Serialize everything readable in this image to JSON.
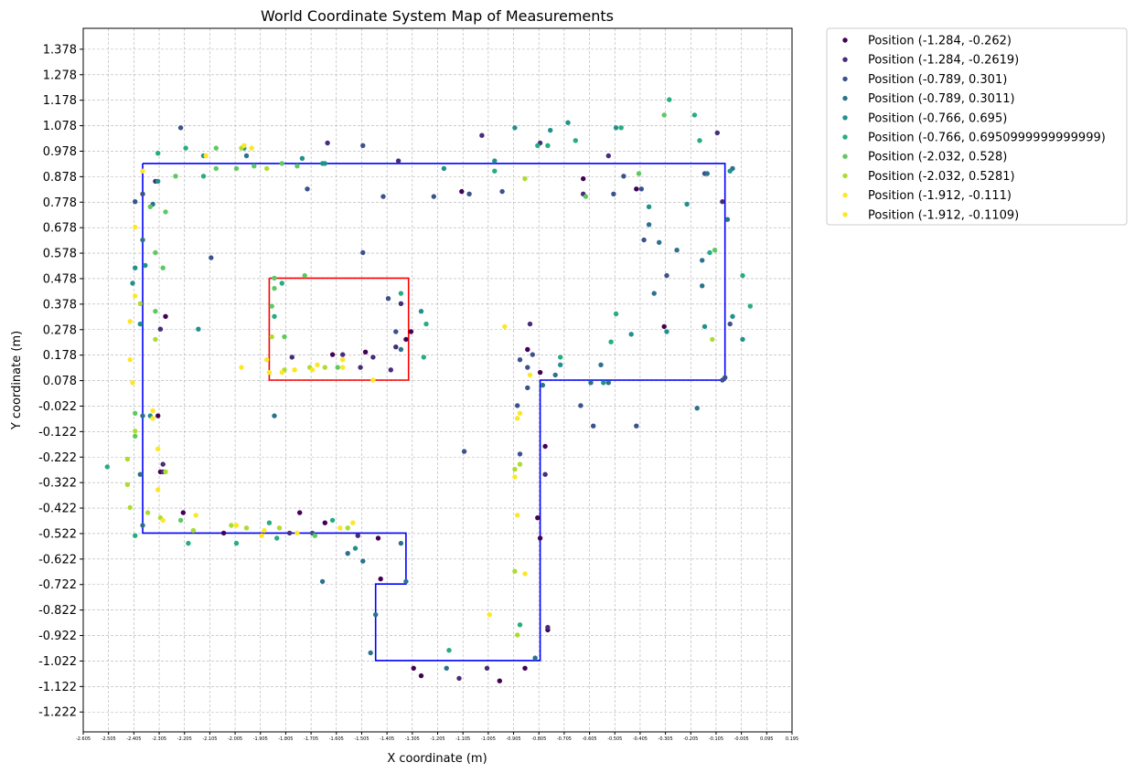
{
  "chart_data": {
    "type": "scatter",
    "title": "World Coordinate System Map of Measurements",
    "xlabel": "X coordinate (m)",
    "ylabel": "Y coordinate (m)",
    "xlim": [
      -2.605,
      0.195
    ],
    "ylim": [
      -1.3,
      1.46
    ],
    "grid": true,
    "legend_position": "outside-top-right",
    "x_ticks": [
      "-2.605",
      "-2.505",
      "-2.405",
      "-2.305",
      "-2.205",
      "-2.105",
      "-2.005",
      "-1.905",
      "-1.805",
      "-1.705",
      "-1.605",
      "-1.505",
      "-1.405",
      "-1.305",
      "-1.205",
      "-1.105",
      "-1.005",
      "-0.905",
      "-0.805",
      "-0.705",
      "-0.605",
      "-0.505",
      "-0.405",
      "-0.305",
      "-0.205",
      "-0.105",
      "-0.005",
      "0.095",
      "0.195"
    ],
    "y_ticks": [
      "1.378",
      "1.278",
      "1.178",
      "1.078",
      "0.978",
      "0.878",
      "0.778",
      "0.678",
      "0.578",
      "0.478",
      "0.378",
      "0.278",
      "0.178",
      "0.078",
      "-0.022",
      "-0.122",
      "-0.222",
      "-0.322",
      "-0.422",
      "-0.522",
      "-0.622",
      "-0.722",
      "-0.822",
      "-0.922",
      "-1.022",
      "-1.122",
      "-1.222"
    ],
    "blue_outline": [
      [
        -2.37,
        0.93
      ],
      [
        -0.07,
        0.93
      ],
      [
        -0.07,
        0.08
      ],
      [
        -0.8,
        0.08
      ],
      [
        -0.8,
        -1.02
      ],
      [
        -1.45,
        -1.02
      ],
      [
        -1.45,
        -0.72
      ],
      [
        -1.33,
        -0.72
      ],
      [
        -1.33,
        -0.52
      ],
      [
        -2.37,
        -0.52
      ],
      [
        -2.37,
        0.93
      ]
    ],
    "red_box": [
      [
        -1.87,
        0.48
      ],
      [
        -1.32,
        0.48
      ],
      [
        -1.32,
        0.08
      ],
      [
        -1.87,
        0.08
      ],
      [
        -1.87,
        0.48
      ]
    ],
    "series": [
      {
        "name": "Position (-1.284, -0.262)",
        "color": "#440154",
        "points": [
          [
            -2.31,
            -0.06
          ],
          [
            -2.3,
            -0.28
          ],
          [
            -2.28,
            0.33
          ],
          [
            -2.21,
            -0.44
          ],
          [
            -2.05,
            -0.52
          ],
          [
            -1.65,
            -0.48
          ],
          [
            -1.62,
            0.18
          ],
          [
            -1.49,
            0.19
          ],
          [
            -1.44,
            -0.54
          ],
          [
            -1.33,
            0.24
          ],
          [
            -1.31,
            0.27
          ],
          [
            -1.27,
            -1.08
          ],
          [
            -1.11,
            0.82
          ],
          [
            -0.85,
            0.2
          ],
          [
            -0.81,
            -0.46
          ],
          [
            -0.8,
            -0.54
          ],
          [
            -0.78,
            -0.18
          ],
          [
            -0.77,
            -0.9
          ],
          [
            -0.63,
            0.87
          ],
          [
            -0.42,
            0.83
          ],
          [
            -0.31,
            0.29
          ],
          [
            -1.3,
            -1.05
          ],
          [
            -1.43,
            -0.7
          ],
          [
            -0.96,
            -1.1
          ],
          [
            -1.75,
            -0.44
          ],
          [
            -0.86,
            -1.05
          ],
          [
            -0.8,
            0.11
          ]
        ]
      },
      {
        "name": "Position (-1.284, -0.2619)",
        "color": "#472c7a",
        "points": [
          [
            -2.3,
            0.28
          ],
          [
            -2.29,
            -0.25
          ],
          [
            -2.32,
            0.86
          ],
          [
            -1.58,
            0.18
          ],
          [
            -1.51,
            0.13
          ],
          [
            -1.46,
            0.17
          ],
          [
            -1.37,
            0.21
          ],
          [
            -1.39,
            0.12
          ],
          [
            -1.35,
            0.38
          ],
          [
            -1.78,
            0.17
          ],
          [
            -1.79,
            -0.52
          ],
          [
            -1.52,
            -0.53
          ],
          [
            -1.12,
            -1.09
          ],
          [
            -1.01,
            -1.05
          ],
          [
            -0.78,
            -0.29
          ],
          [
            -0.77,
            -0.89
          ],
          [
            -0.8,
            1.01
          ],
          [
            -0.53,
            0.96
          ],
          [
            -0.08,
            0.78
          ],
          [
            -0.1,
            1.05
          ],
          [
            -2.29,
            -0.28
          ],
          [
            -0.84,
            0.3
          ],
          [
            -1.64,
            1.01
          ],
          [
            -1.36,
            0.94
          ],
          [
            -1.03,
            1.04
          ],
          [
            -0.63,
            0.81
          ]
        ]
      },
      {
        "name": "Position (-0.789, 0.301)",
        "color": "#3b528b",
        "points": [
          [
            -2.4,
            0.78
          ],
          [
            -2.37,
            0.81
          ],
          [
            -2.22,
            1.07
          ],
          [
            -2.1,
            0.56
          ],
          [
            -1.72,
            0.83
          ],
          [
            -1.42,
            0.8
          ],
          [
            -1.4,
            0.4
          ],
          [
            -1.37,
            0.27
          ],
          [
            -1.22,
            0.8
          ],
          [
            -1.08,
            0.81
          ],
          [
            -0.95,
            0.82
          ],
          [
            -0.88,
            0.16
          ],
          [
            -0.88,
            -0.21
          ],
          [
            -0.89,
            -0.02
          ],
          [
            -0.85,
            0.05
          ],
          [
            -0.85,
            0.13
          ],
          [
            -0.64,
            -0.02
          ],
          [
            -0.51,
            0.81
          ],
          [
            -0.47,
            0.88
          ],
          [
            -0.4,
            0.83
          ],
          [
            -0.39,
            0.63
          ],
          [
            -0.3,
            0.49
          ],
          [
            -0.15,
            0.89
          ],
          [
            -0.08,
            0.08
          ],
          [
            -0.07,
            0.09
          ],
          [
            -1.1,
            -0.2
          ],
          [
            -1.5,
            0.58
          ],
          [
            -1.5,
            1.0
          ],
          [
            -1.7,
            -0.52
          ],
          [
            -0.59,
            -0.1
          ],
          [
            -0.42,
            -0.1
          ],
          [
            -0.83,
            0.18
          ],
          [
            -0.05,
            0.3
          ]
        ]
      },
      {
        "name": "Position (-0.789, 0.3011)",
        "color": "#2c728e",
        "points": [
          [
            -2.37,
            0.63
          ],
          [
            -2.33,
            0.77
          ],
          [
            -2.37,
            -0.06
          ],
          [
            -2.38,
            -0.29
          ],
          [
            -2.37,
            -0.49
          ],
          [
            -1.96,
            0.96
          ],
          [
            -1.85,
            -0.06
          ],
          [
            -1.66,
            -0.71
          ],
          [
            -1.5,
            -0.63
          ],
          [
            -1.47,
            -0.99
          ],
          [
            -1.35,
            -0.56
          ],
          [
            -1.33,
            -0.71
          ],
          [
            -1.17,
            -1.05
          ],
          [
            -0.82,
            -1.01
          ],
          [
            -0.74,
            0.1
          ],
          [
            -0.79,
            0.06
          ],
          [
            -0.6,
            0.07
          ],
          [
            -0.53,
            0.07
          ],
          [
            -0.35,
            0.42
          ],
          [
            -0.37,
            0.69
          ],
          [
            -0.33,
            0.62
          ],
          [
            -0.14,
            0.89
          ],
          [
            -0.16,
            0.55
          ],
          [
            -0.26,
            0.59
          ],
          [
            -0.16,
            0.45
          ],
          [
            -0.18,
            -0.03
          ],
          [
            -0.06,
            0.71
          ],
          [
            -0.04,
            0.91
          ],
          [
            -1.45,
            -0.84
          ],
          [
            -1.56,
            -0.6
          ],
          [
            -1.35,
            0.2
          ],
          [
            -0.56,
            0.14
          ]
        ]
      },
      {
        "name": "Position (-0.766, 0.695)",
        "color": "#21918c",
        "points": [
          [
            -2.4,
            0.52
          ],
          [
            -2.36,
            0.53
          ],
          [
            -2.38,
            0.3
          ],
          [
            -2.41,
            0.46
          ],
          [
            -2.34,
            -0.06
          ],
          [
            -2.31,
            0.86
          ],
          [
            -2.13,
            0.96
          ],
          [
            -1.97,
            0.99
          ],
          [
            -1.74,
            0.95
          ],
          [
            -1.65,
            0.93
          ],
          [
            -1.53,
            -0.58
          ],
          [
            -1.18,
            0.91
          ],
          [
            -0.98,
            0.94
          ],
          [
            -0.9,
            1.07
          ],
          [
            -0.76,
            1.06
          ],
          [
            -0.69,
            1.09
          ],
          [
            -0.5,
            1.07
          ],
          [
            -0.55,
            0.07
          ],
          [
            -0.37,
            0.76
          ],
          [
            -0.3,
            0.27
          ],
          [
            -0.15,
            0.29
          ],
          [
            -0.22,
            0.77
          ],
          [
            -0.05,
            0.9
          ],
          [
            0.0,
            0.24
          ],
          [
            -2.15,
            0.28
          ],
          [
            -0.72,
            0.14
          ],
          [
            -0.44,
            0.26
          ],
          [
            -0.04,
            0.33
          ],
          [
            -1.27,
            0.35
          ],
          [
            -1.66,
            0.93
          ]
        ]
      },
      {
        "name": "Position (-0.766, 0.6950999999999999)",
        "color": "#27ad81",
        "points": [
          [
            -2.51,
            -0.26
          ],
          [
            -2.4,
            -0.53
          ],
          [
            -2.31,
            0.97
          ],
          [
            -2.2,
            0.99
          ],
          [
            -2.19,
            -0.56
          ],
          [
            -2.0,
            -0.56
          ],
          [
            -1.87,
            -0.48
          ],
          [
            -1.84,
            -0.54
          ],
          [
            -1.85,
            0.33
          ],
          [
            -1.82,
            0.46
          ],
          [
            -1.35,
            0.42
          ],
          [
            -1.26,
            0.17
          ],
          [
            -1.25,
            0.3
          ],
          [
            -1.16,
            -0.98
          ],
          [
            -0.98,
            0.9
          ],
          [
            -0.88,
            -0.88
          ],
          [
            -0.81,
            1.0
          ],
          [
            -0.77,
            1.0
          ],
          [
            -0.66,
            1.02
          ],
          [
            -0.72,
            0.17
          ],
          [
            -0.52,
            0.23
          ],
          [
            -0.48,
            1.07
          ],
          [
            -0.29,
            1.18
          ],
          [
            -0.19,
            1.12
          ],
          [
            -0.17,
            1.02
          ],
          [
            -0.13,
            0.58
          ],
          [
            0.0,
            0.49
          ],
          [
            0.03,
            0.37
          ],
          [
            -0.5,
            0.34
          ],
          [
            -2.13,
            0.88
          ],
          [
            -1.62,
            -0.47
          ]
        ]
      },
      {
        "name": "Position (-2.032, 0.528)",
        "color": "#5ec962",
        "points": [
          [
            -2.4,
            -0.14
          ],
          [
            -2.4,
            -0.05
          ],
          [
            -2.34,
            0.76
          ],
          [
            -2.32,
            0.58
          ],
          [
            -2.32,
            0.35
          ],
          [
            -2.29,
            0.52
          ],
          [
            -2.28,
            0.74
          ],
          [
            -2.24,
            0.88
          ],
          [
            -2.17,
            -0.51
          ],
          [
            -2.08,
            0.91
          ],
          [
            -2.0,
            0.91
          ],
          [
            -1.93,
            0.92
          ],
          [
            -1.82,
            0.93
          ],
          [
            -1.76,
            0.92
          ],
          [
            -1.69,
            -0.53
          ],
          [
            -1.6,
            0.13
          ],
          [
            -1.81,
            0.25
          ],
          [
            -1.86,
            0.37
          ],
          [
            -1.85,
            0.44
          ],
          [
            -1.85,
            0.48
          ],
          [
            -0.62,
            0.8
          ],
          [
            -0.41,
            0.89
          ],
          [
            -0.11,
            0.59
          ],
          [
            -0.31,
            1.12
          ],
          [
            -1.73,
            0.49
          ],
          [
            -2.08,
            0.99
          ],
          [
            -2.22,
            -0.47
          ]
        ]
      },
      {
        "name": "Position (-2.032, 0.5281)",
        "color": "#addc30",
        "points": [
          [
            -2.43,
            -0.23
          ],
          [
            -2.43,
            -0.33
          ],
          [
            -2.42,
            -0.42
          ],
          [
            -2.4,
            -0.12
          ],
          [
            -2.38,
            0.38
          ],
          [
            -2.32,
            0.24
          ],
          [
            -2.3,
            -0.46
          ],
          [
            -2.28,
            -0.28
          ],
          [
            -2.17,
            -0.51
          ],
          [
            -2.02,
            -0.49
          ],
          [
            -1.96,
            -0.5
          ],
          [
            -1.83,
            -0.5
          ],
          [
            -1.71,
            0.13
          ],
          [
            -1.65,
            0.13
          ],
          [
            -1.56,
            -0.5
          ],
          [
            -0.9,
            -0.27
          ],
          [
            -0.88,
            -0.25
          ],
          [
            -0.9,
            -0.67
          ],
          [
            -0.89,
            -0.92
          ],
          [
            -0.86,
            0.87
          ],
          [
            -0.12,
            0.24
          ],
          [
            -2.35,
            -0.44
          ],
          [
            -1.81,
            0.12
          ],
          [
            -1.86,
            0.25
          ],
          [
            -1.98,
            0.99
          ],
          [
            -1.88,
            0.91
          ]
        ]
      },
      {
        "name": "Position (-1.912, -0.111)",
        "color": "#fde725",
        "points": [
          [
            -2.4,
            0.68
          ],
          [
            -2.42,
            0.31
          ],
          [
            -2.4,
            0.41
          ],
          [
            -2.37,
            0.9
          ],
          [
            -2.31,
            -0.35
          ],
          [
            -2.31,
            -0.19
          ],
          [
            -2.33,
            -0.04
          ],
          [
            -2.29,
            -0.47
          ],
          [
            -2.12,
            0.96
          ],
          [
            -1.98,
            0.13
          ],
          [
            -1.94,
            0.99
          ],
          [
            -1.88,
            0.16
          ],
          [
            -1.82,
            0.11
          ],
          [
            -1.7,
            0.12
          ],
          [
            -1.59,
            -0.5
          ],
          [
            -1.58,
            0.13
          ],
          [
            -1.46,
            0.08
          ],
          [
            -1.89,
            -0.51
          ],
          [
            -1.76,
            -0.52
          ],
          [
            -0.88,
            -0.05
          ],
          [
            -0.89,
            -0.45
          ],
          [
            -1.0,
            -0.84
          ],
          [
            -0.86,
            -0.68
          ],
          [
            -0.94,
            0.29
          ],
          [
            -1.87,
            0.11
          ],
          [
            -1.77,
            0.12
          ]
        ]
      },
      {
        "name": "Position (-1.912, -0.1109)",
        "color": "#fde725",
        "points": [
          [
            -2.42,
            0.16
          ],
          [
            -2.41,
            0.07
          ],
          [
            -2.33,
            -0.07
          ],
          [
            -2.16,
            -0.45
          ],
          [
            -2.0,
            -0.49
          ],
          [
            -1.9,
            -0.53
          ],
          [
            -1.77,
            0.12
          ],
          [
            -1.68,
            0.14
          ],
          [
            -1.58,
            0.16
          ],
          [
            -0.9,
            -0.3
          ],
          [
            -0.89,
            -0.07
          ],
          [
            -0.84,
            0.1
          ],
          [
            -1.54,
            -0.48
          ],
          [
            -1.97,
            1.0
          ]
        ]
      }
    ]
  }
}
